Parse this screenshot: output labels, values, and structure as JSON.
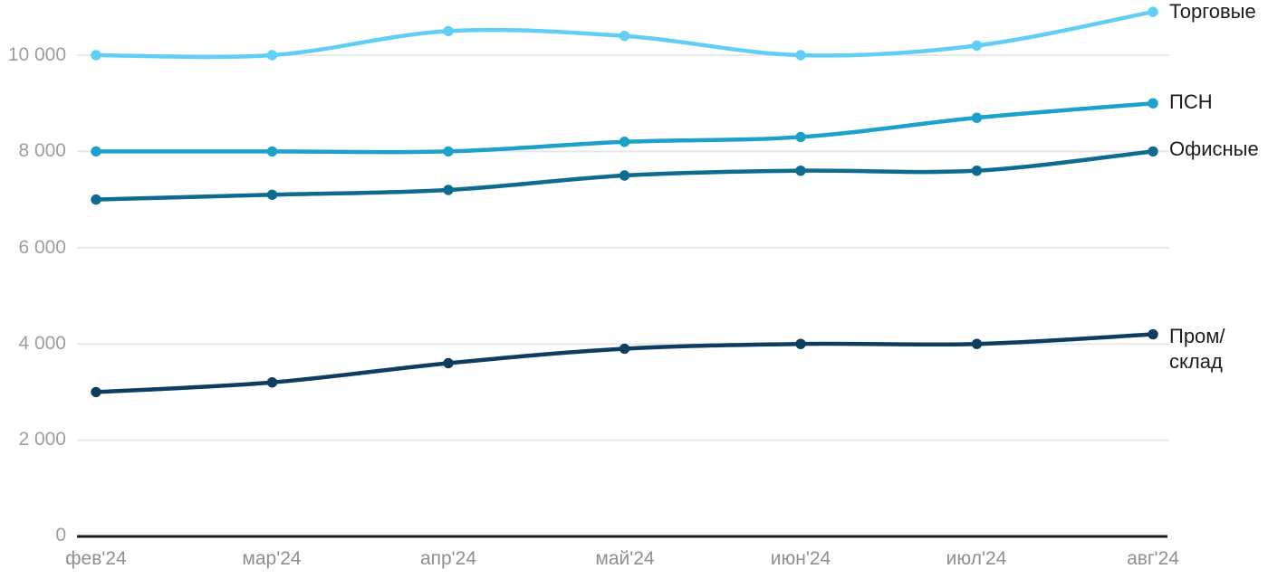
{
  "chart_data": {
    "type": "line",
    "title": "",
    "xlabel": "",
    "ylabel": "",
    "x_labels": [
      "фев'24",
      "мар'24",
      "апр'24",
      "май'24",
      "июн'24",
      "июл'24",
      "авг'24"
    ],
    "y_ticks": [
      "0",
      "2 000",
      "4 000",
      "6 000",
      "8 000",
      "10 000"
    ],
    "y_tick_values": [
      0,
      2000,
      4000,
      6000,
      8000,
      10000
    ],
    "ylim": [
      0,
      11000
    ],
    "grid": true,
    "legend_position": "right-edge-labels",
    "series": [
      {
        "name": "Торговые",
        "color": "#61cef6",
        "values": [
          10000,
          10000,
          10500,
          10400,
          10000,
          10200,
          10900
        ]
      },
      {
        "name": "ПСН",
        "color": "#1ca1cb",
        "values": [
          8000,
          8000,
          8000,
          8200,
          8300,
          8700,
          9000
        ]
      },
      {
        "name": "Офисные",
        "color": "#0d6b8e",
        "values": [
          7000,
          7100,
          7200,
          7500,
          7600,
          7600,
          8000
        ]
      },
      {
        "name": "Пром/склад",
        "color": "#0e3d5f",
        "values": [
          3000,
          3200,
          3600,
          3900,
          4000,
          4000,
          4200
        ]
      }
    ]
  },
  "colors": {
    "gridline": "#e8e8e8",
    "axis_line": "#1a1a1a",
    "y_tick_text": "#9e9e9e",
    "x_tick_text": "#8f8f8f",
    "series_label_text": "#1c1c1c",
    "background": "#ffffff"
  }
}
